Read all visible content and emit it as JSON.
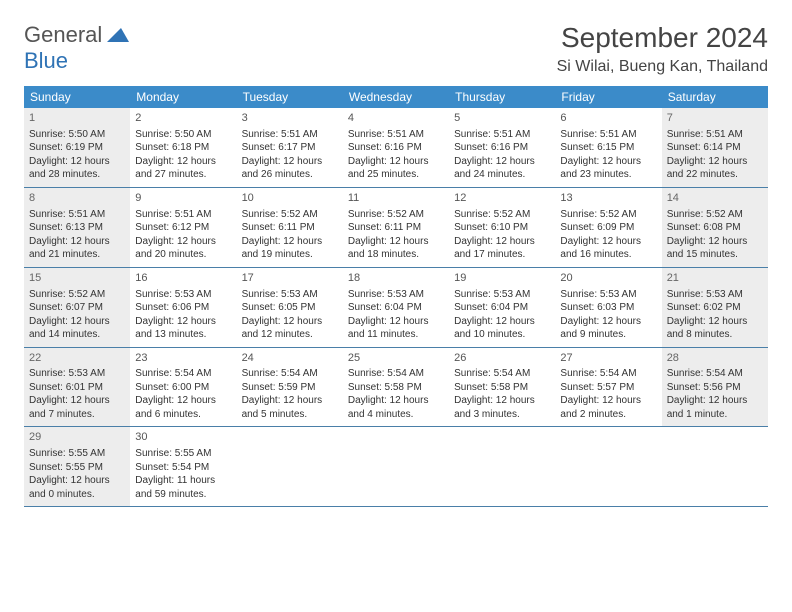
{
  "logo": {
    "word1": "General",
    "word2": "Blue"
  },
  "title": "September 2024",
  "location": "Si Wilai, Bueng Kan, Thailand",
  "colors": {
    "header_bg": "#3b8bc9",
    "header_text": "#ffffff",
    "shaded_bg": "#ededed",
    "border": "#4a7fa8",
    "logo_blue": "#2f73b5"
  },
  "dow": [
    "Sunday",
    "Monday",
    "Tuesday",
    "Wednesday",
    "Thursday",
    "Friday",
    "Saturday"
  ],
  "weeks": [
    [
      {
        "n": "1",
        "shaded": true,
        "sr": "5:50 AM",
        "ss": "6:19 PM",
        "dl": "12 hours and 28 minutes."
      },
      {
        "n": "2",
        "shaded": false,
        "sr": "5:50 AM",
        "ss": "6:18 PM",
        "dl": "12 hours and 27 minutes."
      },
      {
        "n": "3",
        "shaded": false,
        "sr": "5:51 AM",
        "ss": "6:17 PM",
        "dl": "12 hours and 26 minutes."
      },
      {
        "n": "4",
        "shaded": false,
        "sr": "5:51 AM",
        "ss": "6:16 PM",
        "dl": "12 hours and 25 minutes."
      },
      {
        "n": "5",
        "shaded": false,
        "sr": "5:51 AM",
        "ss": "6:16 PM",
        "dl": "12 hours and 24 minutes."
      },
      {
        "n": "6",
        "shaded": false,
        "sr": "5:51 AM",
        "ss": "6:15 PM",
        "dl": "12 hours and 23 minutes."
      },
      {
        "n": "7",
        "shaded": true,
        "sr": "5:51 AM",
        "ss": "6:14 PM",
        "dl": "12 hours and 22 minutes."
      }
    ],
    [
      {
        "n": "8",
        "shaded": true,
        "sr": "5:51 AM",
        "ss": "6:13 PM",
        "dl": "12 hours and 21 minutes."
      },
      {
        "n": "9",
        "shaded": false,
        "sr": "5:51 AM",
        "ss": "6:12 PM",
        "dl": "12 hours and 20 minutes."
      },
      {
        "n": "10",
        "shaded": false,
        "sr": "5:52 AM",
        "ss": "6:11 PM",
        "dl": "12 hours and 19 minutes."
      },
      {
        "n": "11",
        "shaded": false,
        "sr": "5:52 AM",
        "ss": "6:11 PM",
        "dl": "12 hours and 18 minutes."
      },
      {
        "n": "12",
        "shaded": false,
        "sr": "5:52 AM",
        "ss": "6:10 PM",
        "dl": "12 hours and 17 minutes."
      },
      {
        "n": "13",
        "shaded": false,
        "sr": "5:52 AM",
        "ss": "6:09 PM",
        "dl": "12 hours and 16 minutes."
      },
      {
        "n": "14",
        "shaded": true,
        "sr": "5:52 AM",
        "ss": "6:08 PM",
        "dl": "12 hours and 15 minutes."
      }
    ],
    [
      {
        "n": "15",
        "shaded": true,
        "sr": "5:52 AM",
        "ss": "6:07 PM",
        "dl": "12 hours and 14 minutes."
      },
      {
        "n": "16",
        "shaded": false,
        "sr": "5:53 AM",
        "ss": "6:06 PM",
        "dl": "12 hours and 13 minutes."
      },
      {
        "n": "17",
        "shaded": false,
        "sr": "5:53 AM",
        "ss": "6:05 PM",
        "dl": "12 hours and 12 minutes."
      },
      {
        "n": "18",
        "shaded": false,
        "sr": "5:53 AM",
        "ss": "6:04 PM",
        "dl": "12 hours and 11 minutes."
      },
      {
        "n": "19",
        "shaded": false,
        "sr": "5:53 AM",
        "ss": "6:04 PM",
        "dl": "12 hours and 10 minutes."
      },
      {
        "n": "20",
        "shaded": false,
        "sr": "5:53 AM",
        "ss": "6:03 PM",
        "dl": "12 hours and 9 minutes."
      },
      {
        "n": "21",
        "shaded": true,
        "sr": "5:53 AM",
        "ss": "6:02 PM",
        "dl": "12 hours and 8 minutes."
      }
    ],
    [
      {
        "n": "22",
        "shaded": true,
        "sr": "5:53 AM",
        "ss": "6:01 PM",
        "dl": "12 hours and 7 minutes."
      },
      {
        "n": "23",
        "shaded": false,
        "sr": "5:54 AM",
        "ss": "6:00 PM",
        "dl": "12 hours and 6 minutes."
      },
      {
        "n": "24",
        "shaded": false,
        "sr": "5:54 AM",
        "ss": "5:59 PM",
        "dl": "12 hours and 5 minutes."
      },
      {
        "n": "25",
        "shaded": false,
        "sr": "5:54 AM",
        "ss": "5:58 PM",
        "dl": "12 hours and 4 minutes."
      },
      {
        "n": "26",
        "shaded": false,
        "sr": "5:54 AM",
        "ss": "5:58 PM",
        "dl": "12 hours and 3 minutes."
      },
      {
        "n": "27",
        "shaded": false,
        "sr": "5:54 AM",
        "ss": "5:57 PM",
        "dl": "12 hours and 2 minutes."
      },
      {
        "n": "28",
        "shaded": true,
        "sr": "5:54 AM",
        "ss": "5:56 PM",
        "dl": "12 hours and 1 minute."
      }
    ],
    [
      {
        "n": "29",
        "shaded": true,
        "sr": "5:55 AM",
        "ss": "5:55 PM",
        "dl": "12 hours and 0 minutes."
      },
      {
        "n": "30",
        "shaded": false,
        "sr": "5:55 AM",
        "ss": "5:54 PM",
        "dl": "11 hours and 59 minutes."
      },
      null,
      null,
      null,
      null,
      null
    ]
  ],
  "labels": {
    "sunrise": "Sunrise:",
    "sunset": "Sunset:",
    "daylight": "Daylight:"
  }
}
